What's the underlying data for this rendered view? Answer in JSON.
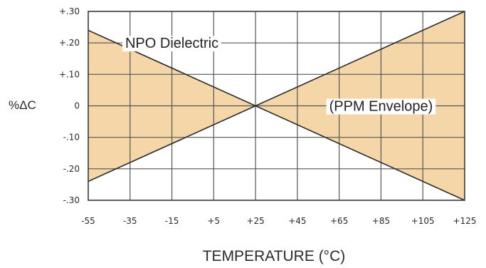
{
  "chart_data": {
    "type": "area",
    "xlabel": "TEMPERATURE (°C)",
    "ylabel": "%ΔC",
    "x_ticks": [
      -55,
      -35,
      -15,
      5,
      25,
      45,
      65,
      85,
      105,
      125
    ],
    "x_tick_labels": [
      "-55",
      "-35",
      "-15",
      "+5",
      "+25",
      "+45",
      "+65",
      "+85",
      "+105",
      "+125"
    ],
    "y_ticks": [
      0.3,
      0.2,
      0.1,
      0,
      -0.1,
      -0.2,
      -0.3
    ],
    "y_tick_labels": [
      "+.30",
      "+.20",
      "+.10",
      "0",
      "-.10",
      "-.20",
      "-.30"
    ],
    "xlim": [
      -55,
      125
    ],
    "ylim": [
      -0.3,
      0.3
    ],
    "grid": true,
    "series": [
      {
        "values_x": [
          -55,
          25,
          125
        ],
        "values_y": [
          0.24,
          0,
          0.3
        ]
      },
      {
        "values_x": [
          -55,
          25,
          125
        ],
        "values_y": [
          -0.24,
          0,
          -0.3
        ]
      }
    ],
    "annotations": [
      {
        "text": "NPO Dielectric",
        "x": -15,
        "y": 0.2
      },
      {
        "text": "(PPM Envelope)",
        "x": 85,
        "y": 0
      }
    ],
    "colors": {
      "fill": "#f5d6a8",
      "line": "#2b2b2b",
      "grid": "#555555",
      "frame": "#3a3a3a"
    }
  }
}
